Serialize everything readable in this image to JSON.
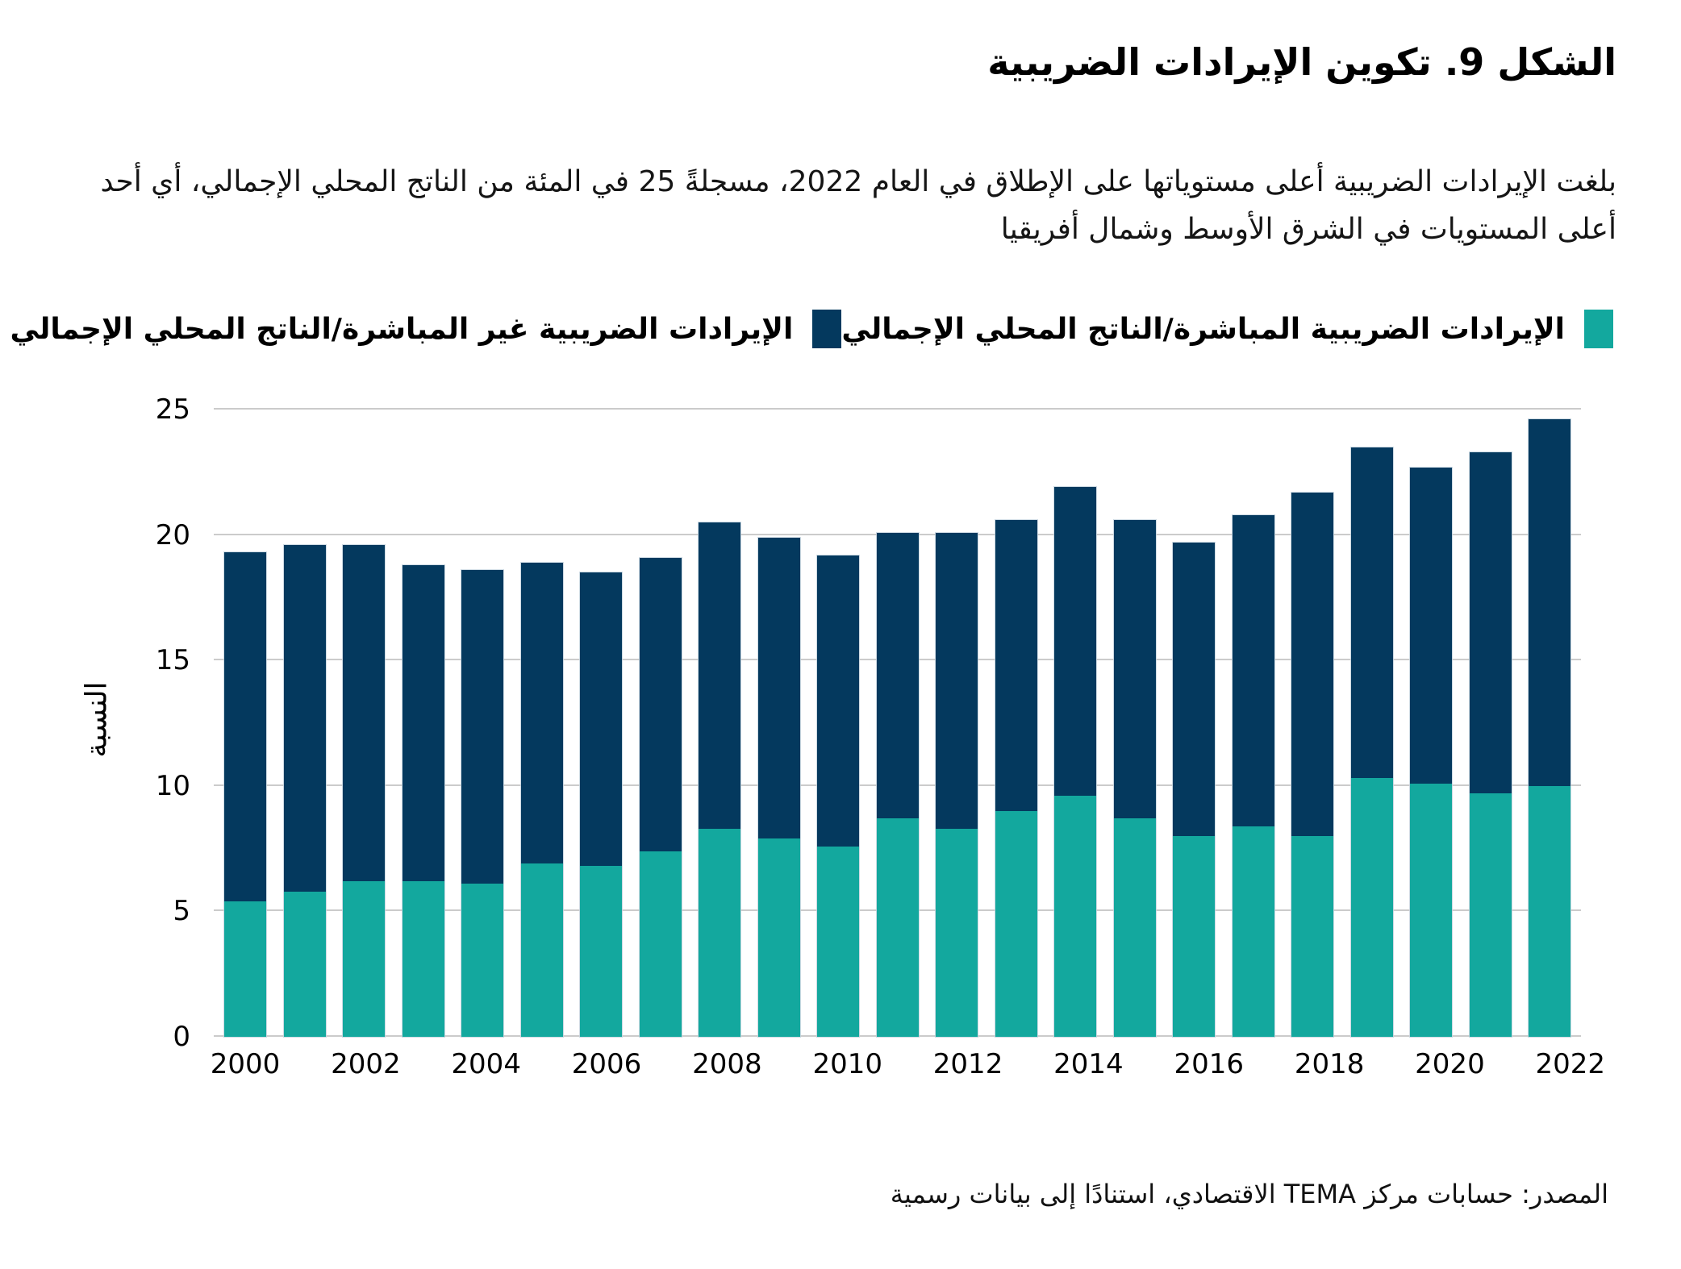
{
  "figure": {
    "title": "الشكل 9. تكوين الإيرادات الضريبية",
    "subtitle": "بلغت الإيرادات الضريبية أعلى مستوياتها على الإطلاق في العام 2022، مسجلةً 25 في المئة من الناتج المحلي الإجمالي، أي أحد أعلى المستويات في الشرق الأوسط وشمال أفريقيا",
    "source": "المصدر: حسابات مركز TEMA الاقتصادي، استنادًا إلى بيانات رسمية"
  },
  "colors": {
    "direct_teal": "#13A89E",
    "indirect_navy": "#04395E",
    "gridline": "#CBCBCB",
    "bar_outline": "#C4D3DE",
    "background": "#FFFFFF",
    "text": "#000000"
  },
  "legend": [
    {
      "label": "الإيرادات الضريبية المباشرة/الناتج المحلي الإجمالي",
      "color": "#13A89E"
    },
    {
      "label": "الإيرادات الضريبية غير المباشرة/الناتج المحلي الإجمالي",
      "color": "#04395E"
    }
  ],
  "chart_data": {
    "type": "bar",
    "stacked": true,
    "title": "الشكل 9. تكوين الإيرادات الضريبية",
    "ylabel": "النسبة",
    "xlabel": "",
    "ylim": [
      0,
      25
    ],
    "yticks": [
      0,
      5,
      10,
      15,
      20,
      25
    ],
    "grid": true,
    "legend_position": "top",
    "categories": [
      2000,
      2001,
      2002,
      2003,
      2004,
      2005,
      2006,
      2007,
      2008,
      2009,
      2010,
      2011,
      2012,
      2013,
      2014,
      2015,
      2016,
      2017,
      2018,
      2019,
      2020,
      2021,
      2022
    ],
    "xtick_labels": [
      "2000",
      "2002",
      "2004",
      "2006",
      "2008",
      "2010",
      "2012",
      "2014",
      "2016",
      "2018",
      "2020",
      "2022"
    ],
    "series": [
      {
        "name": "الإيرادات الضريبية المباشرة/الناتج المحلي الإجمالي",
        "color": "#13A89E",
        "values": [
          5.4,
          5.8,
          6.2,
          6.2,
          6.1,
          6.9,
          6.8,
          7.4,
          8.3,
          7.9,
          7.6,
          8.7,
          8.3,
          9.0,
          9.6,
          8.7,
          8.0,
          8.4,
          8.0,
          10.3,
          10.1,
          9.7,
          10.0
        ]
      },
      {
        "name": "الإيرادات الضريبية غير المباشرة/الناتج المحلي الإجمالي",
        "color": "#04395E",
        "values": [
          13.9,
          13.8,
          13.4,
          12.6,
          12.5,
          12.0,
          11.7,
          11.7,
          12.2,
          12.0,
          11.6,
          11.4,
          11.8,
          11.6,
          12.3,
          11.9,
          11.7,
          12.4,
          13.7,
          13.2,
          12.6,
          13.6,
          14.6
        ]
      }
    ],
    "totals": [
      19.3,
      19.6,
      19.6,
      18.8,
      18.6,
      18.9,
      18.5,
      19.1,
      20.5,
      19.9,
      19.2,
      20.1,
      20.1,
      20.6,
      21.9,
      20.6,
      19.7,
      20.8,
      21.7,
      23.5,
      22.7,
      23.3,
      24.6
    ]
  }
}
